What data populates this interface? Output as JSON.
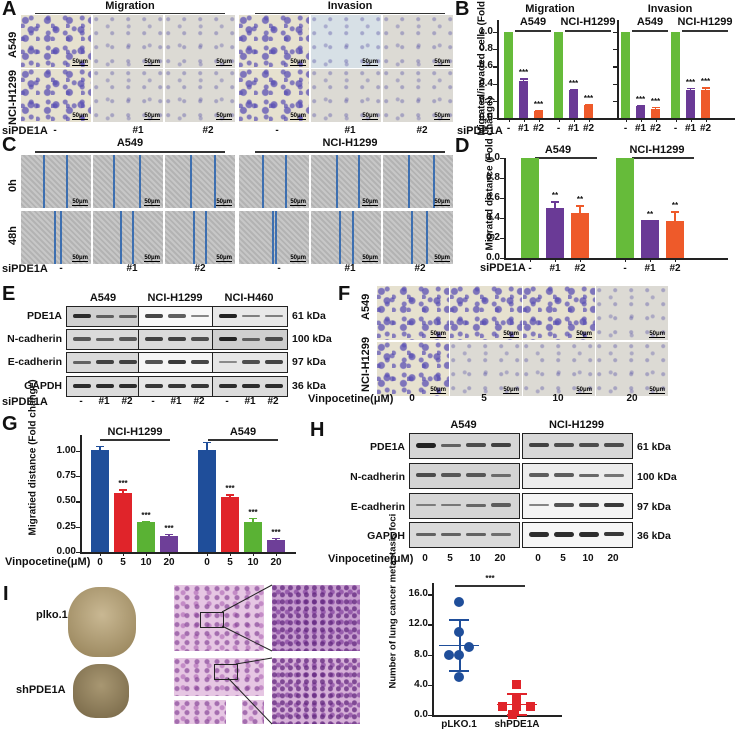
{
  "panels": {
    "A": {
      "label": "A",
      "groups": [
        "Migration",
        "Invasion"
      ],
      "rows": [
        "A549",
        "NCI-H1299"
      ],
      "treatment_label": "siPDE1A",
      "columns": [
        "-",
        "#1",
        "#2",
        "-",
        "#1",
        "#2"
      ],
      "scale_bar": "50μm"
    },
    "B": {
      "label": "B",
      "titles": [
        "Migration",
        "Invasion"
      ],
      "cell_lines": [
        "A549",
        "NCI-H1299"
      ],
      "ylabel": "Migrated/invaded cells (Fold change)",
      "yticks": [
        "0.0",
        "0.2",
        "0.4",
        "0.6",
        "0.8",
        "1.0"
      ],
      "treatment_label": "siPDE1A",
      "xticks": [
        "-",
        "#1",
        "#2",
        "-",
        "#1",
        "#2",
        "-",
        "#1",
        "#2",
        "-",
        "#1",
        "#2"
      ],
      "sig": "***"
    },
    "C": {
      "label": "C",
      "groups": [
        "A549",
        "NCI-H1299"
      ],
      "rows": [
        "0h",
        "48h"
      ],
      "treatment_label": "siPDE1A",
      "columns": [
        "-",
        "#1",
        "#2",
        "-",
        "#1",
        "#2"
      ],
      "scale_bar": "50μm"
    },
    "D": {
      "label": "D",
      "cell_lines": [
        "A549",
        "NCI-H1299"
      ],
      "ylabel": "Migrated distance (Fold change)",
      "yticks": [
        "0.0",
        "0.2",
        "0.4",
        "0.6",
        "0.8",
        "1.0"
      ],
      "treatment_label": "siPDE1A",
      "xticks": [
        "-",
        "#1",
        "#2",
        "-",
        "#1",
        "#2"
      ],
      "sig": "**"
    },
    "E": {
      "label": "E",
      "cell_lines": [
        "A549",
        "NCI-H1299",
        "NCI-H460"
      ],
      "proteins": [
        "PDE1A",
        "N-cadherin",
        "E-cadherin",
        "GAPDH"
      ],
      "sizes": [
        "61 kDa",
        "100 kDa",
        "97 kDa",
        "36 kDa"
      ],
      "treatment_label": "siPDE1A",
      "lanes": [
        "-",
        "#1",
        "#2",
        "-",
        "#1",
        "#2",
        "-",
        "#1",
        "#2"
      ]
    },
    "F": {
      "label": "F",
      "rows": [
        "A549",
        "NCI-H1299"
      ],
      "treatment_label": "Vinpocetine(μM)",
      "columns": [
        "0",
        "5",
        "10",
        "20"
      ],
      "scale_bar": "50μm"
    },
    "G": {
      "label": "G",
      "cell_lines": [
        "NCI-H1299",
        "A549"
      ],
      "ylabel": "Migratied distance (Fold change)",
      "yticks": [
        "0.00",
        "0.25",
        "0.50",
        "0.75",
        "1.00"
      ],
      "treatment_label": "Vinpocetine(μM)",
      "xticks": [
        "0",
        "5",
        "10",
        "20",
        "0",
        "5",
        "10",
        "20"
      ],
      "sig": "***"
    },
    "H": {
      "label": "H",
      "cell_lines": [
        "A549",
        "NCI-H1299"
      ],
      "proteins": [
        "PDE1A",
        "N-cadherin",
        "E-cadherin",
        "GAPDH"
      ],
      "sizes": [
        "61 kDa",
        "100 kDa",
        "97 kDa",
        "36 kDa"
      ],
      "treatment_label": "Vinpocetine(μM)",
      "lanes": [
        "0",
        "5",
        "10",
        "20",
        "0",
        "5",
        "10",
        "20"
      ]
    },
    "I": {
      "label": "I",
      "groups": [
        "plko.1",
        "shPDE1A"
      ],
      "ylabel": "Number of lung cancer metastasis foci",
      "yticks": [
        "0.0",
        "4.0",
        "8.0",
        "12.0",
        "16.0"
      ],
      "xticks": [
        "pLKO.1",
        "shPDE1A"
      ],
      "sig": "***"
    }
  },
  "colors": {
    "green": "#66bb3a",
    "purple": "#6a3a96",
    "orange": "#ee5a2a",
    "blue": "#1f4e9a",
    "red": "#e0242a",
    "g_green": "#5ab234",
    "g_purple": "#6e3f98"
  },
  "chart_data": [
    {
      "panel": "B",
      "type": "bar",
      "title": "Migration / Invasion",
      "ylabel": "Migrated/invaded cells (Fold change)",
      "ylim": [
        0,
        1.1
      ],
      "categories": [
        "Migration A549",
        "Migration NCI-H1299",
        "Invasion A549",
        "Invasion NCI-H1299"
      ],
      "series": [
        {
          "name": "-",
          "values": [
            1.0,
            1.0,
            1.0,
            1.0
          ]
        },
        {
          "name": "#1",
          "values": [
            0.43,
            0.33,
            0.14,
            0.32
          ]
        },
        {
          "name": "#2",
          "values": [
            0.08,
            0.15,
            0.11,
            0.32
          ]
        }
      ],
      "errors": {
        "#1": [
          0.03,
          0.01,
          0.01,
          0.03
        ],
        "#2": [
          0.01,
          0.01,
          0.02,
          0.04
        ]
      },
      "annotations": "*** on all siPDE1A bars"
    },
    {
      "panel": "D",
      "type": "bar",
      "ylabel": "Migrated distance (Fold change)",
      "ylim": [
        0,
        1.0
      ],
      "categories": [
        "A549",
        "NCI-H1299"
      ],
      "series": [
        {
          "name": "-",
          "values": [
            1.0,
            1.0
          ]
        },
        {
          "name": "#1",
          "values": [
            0.5,
            0.38
          ]
        },
        {
          "name": "#2",
          "values": [
            0.45,
            0.37
          ]
        }
      ],
      "errors": {
        "#1": [
          0.07,
          0.005
        ],
        "#2": [
          0.08,
          0.1
        ]
      },
      "annotations": "** on all siPDE1A bars"
    },
    {
      "panel": "G",
      "type": "bar",
      "ylabel": "Migratied distance (Fold change)",
      "xlabel": "Vinpocetine(μM)",
      "ylim": [
        0,
        1.1
      ],
      "categories": [
        "NCI-H1299",
        "A549"
      ],
      "series": [
        {
          "name": "0",
          "values": [
            1.01,
            1.01
          ]
        },
        {
          "name": "5",
          "values": [
            0.58,
            0.54
          ]
        },
        {
          "name": "10",
          "values": [
            0.3,
            0.3
          ]
        },
        {
          "name": "20",
          "values": [
            0.16,
            0.12
          ]
        }
      ],
      "errors": {
        "0": [
          0.04,
          0.08
        ],
        "5": [
          0.04,
          0.03
        ],
        "10": [
          0.01,
          0.04
        ],
        "20": [
          0.02,
          0.02
        ]
      },
      "annotations": "*** on all treated bars"
    },
    {
      "panel": "I",
      "type": "scatter",
      "ylabel": "Number of lung cancer metastasis foci",
      "ylim": [
        0,
        18
      ],
      "categories": [
        "pLKO.1",
        "shPDE1A"
      ],
      "series": [
        {
          "name": "pLKO.1",
          "values": [
            15,
            11,
            9,
            8,
            8,
            5
          ],
          "mean": 9.3,
          "sd": 3.4
        },
        {
          "name": "shPDE1A",
          "values": [
            4,
            2,
            1,
            1,
            1,
            0
          ],
          "mean": 1.5,
          "sd": 1.4
        }
      ],
      "annotations": "*** between groups"
    }
  ]
}
